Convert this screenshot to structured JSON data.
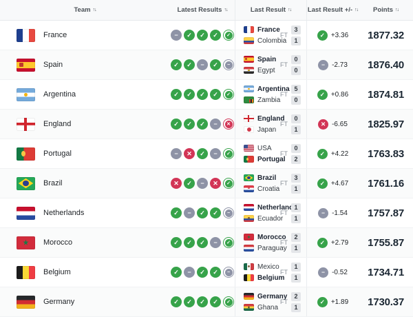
{
  "table": {
    "sort_glyph": "↑↓",
    "columns": [
      {
        "label": "Team"
      },
      {
        "label": "Latest Results"
      },
      {
        "label": "Last Result"
      },
      {
        "label": "Last Result +/-"
      },
      {
        "label": "Points"
      }
    ],
    "icons": {
      "glyphs": {
        "W": "✓",
        "D": "−",
        "L": "✕"
      },
      "names": {
        "W": "win-icon",
        "D": "draw-icon",
        "L": "loss-icon"
      },
      "colors": {
        "W": "#37a34a",
        "D": "#8e93a6",
        "L": "#d23556"
      }
    },
    "rows": [
      {
        "team": "France",
        "flag": "fr",
        "latest": [
          "D",
          "W",
          "W",
          "W",
          "W"
        ],
        "last_result": {
          "home": "France",
          "home_flag": "fr",
          "home_bold": true,
          "home_score": "3",
          "away": "Colombia",
          "away_flag": "co",
          "away_bold": false,
          "away_score": "1",
          "status": "FT"
        },
        "delta": "+3.36",
        "delta_icon": "W",
        "points": "1877.32"
      },
      {
        "team": "Spain",
        "flag": "es",
        "latest": [
          "W",
          "W",
          "D",
          "W",
          "D"
        ],
        "last_result": {
          "home": "Spain",
          "home_flag": "es",
          "home_bold": true,
          "home_score": "0",
          "away": "Egypt",
          "away_flag": "eg",
          "away_bold": false,
          "away_score": "0",
          "status": "FT"
        },
        "delta": "-2.73",
        "delta_icon": "D",
        "points": "1876.40"
      },
      {
        "team": "Argentina",
        "flag": "ar",
        "latest": [
          "W",
          "W",
          "W",
          "W",
          "W"
        ],
        "last_result": {
          "home": "Argentina",
          "home_flag": "ar",
          "home_bold": true,
          "home_score": "5",
          "away": "Zambia",
          "away_flag": "zm",
          "away_bold": false,
          "away_score": "0",
          "status": "FT"
        },
        "delta": "+0.86",
        "delta_icon": "W",
        "points": "1874.81"
      },
      {
        "team": "England",
        "flag": "en",
        "latest": [
          "W",
          "W",
          "W",
          "D",
          "L"
        ],
        "last_result": {
          "home": "England",
          "home_flag": "en",
          "home_bold": true,
          "home_score": "0",
          "away": "Japan",
          "away_flag": "jp",
          "away_bold": false,
          "away_score": "1",
          "status": "FT"
        },
        "delta": "-6.65",
        "delta_icon": "L",
        "points": "1825.97"
      },
      {
        "team": "Portugal",
        "flag": "pt",
        "latest": [
          "D",
          "L",
          "W",
          "D",
          "W"
        ],
        "last_result": {
          "home": "USA",
          "home_flag": "us",
          "home_bold": false,
          "home_score": "0",
          "away": "Portugal",
          "away_flag": "pt",
          "away_bold": true,
          "away_score": "2",
          "status": "FT"
        },
        "delta": "+4.22",
        "delta_icon": "W",
        "points": "1763.83"
      },
      {
        "team": "Brazil",
        "flag": "br",
        "latest": [
          "L",
          "W",
          "D",
          "L",
          "W"
        ],
        "last_result": {
          "home": "Brazil",
          "home_flag": "br",
          "home_bold": true,
          "home_score": "3",
          "away": "Croatia",
          "away_flag": "hr",
          "away_bold": false,
          "away_score": "1",
          "status": "FT"
        },
        "delta": "+4.67",
        "delta_icon": "W",
        "points": "1761.16"
      },
      {
        "team": "Netherlands",
        "flag": "nl",
        "latest": [
          "W",
          "D",
          "W",
          "W",
          "D"
        ],
        "last_result": {
          "home": "Netherlands",
          "home_flag": "nl",
          "home_bold": true,
          "home_score": "1",
          "away": "Ecuador",
          "away_flag": "ec",
          "away_bold": false,
          "away_score": "1",
          "status": "FT"
        },
        "delta": "-1.54",
        "delta_icon": "D",
        "points": "1757.87"
      },
      {
        "team": "Morocco",
        "flag": "ma",
        "latest": [
          "W",
          "W",
          "W",
          "D",
          "W"
        ],
        "last_result": {
          "home": "Morocco",
          "home_flag": "ma",
          "home_bold": true,
          "home_score": "2",
          "away": "Paraguay",
          "away_flag": "py",
          "away_bold": false,
          "away_score": "1",
          "status": "FT"
        },
        "delta": "+2.79",
        "delta_icon": "W",
        "points": "1755.87"
      },
      {
        "team": "Belgium",
        "flag": "be",
        "latest": [
          "W",
          "D",
          "W",
          "W",
          "D"
        ],
        "last_result": {
          "home": "Mexico",
          "home_flag": "mx",
          "home_bold": false,
          "home_score": "1",
          "away": "Belgium",
          "away_flag": "be",
          "away_bold": true,
          "away_score": "1",
          "status": "FT"
        },
        "delta": "-0.52",
        "delta_icon": "D",
        "points": "1734.71"
      },
      {
        "team": "Germany",
        "flag": "de",
        "latest": [
          "W",
          "W",
          "W",
          "W",
          "W"
        ],
        "last_result": {
          "home": "Germany",
          "home_flag": "de",
          "home_bold": true,
          "home_score": "2",
          "away": "Ghana",
          "away_flag": "gh",
          "away_bold": false,
          "away_score": "1",
          "status": "FT"
        },
        "delta": "+1.89",
        "delta_icon": "W",
        "points": "1730.37"
      }
    ]
  }
}
